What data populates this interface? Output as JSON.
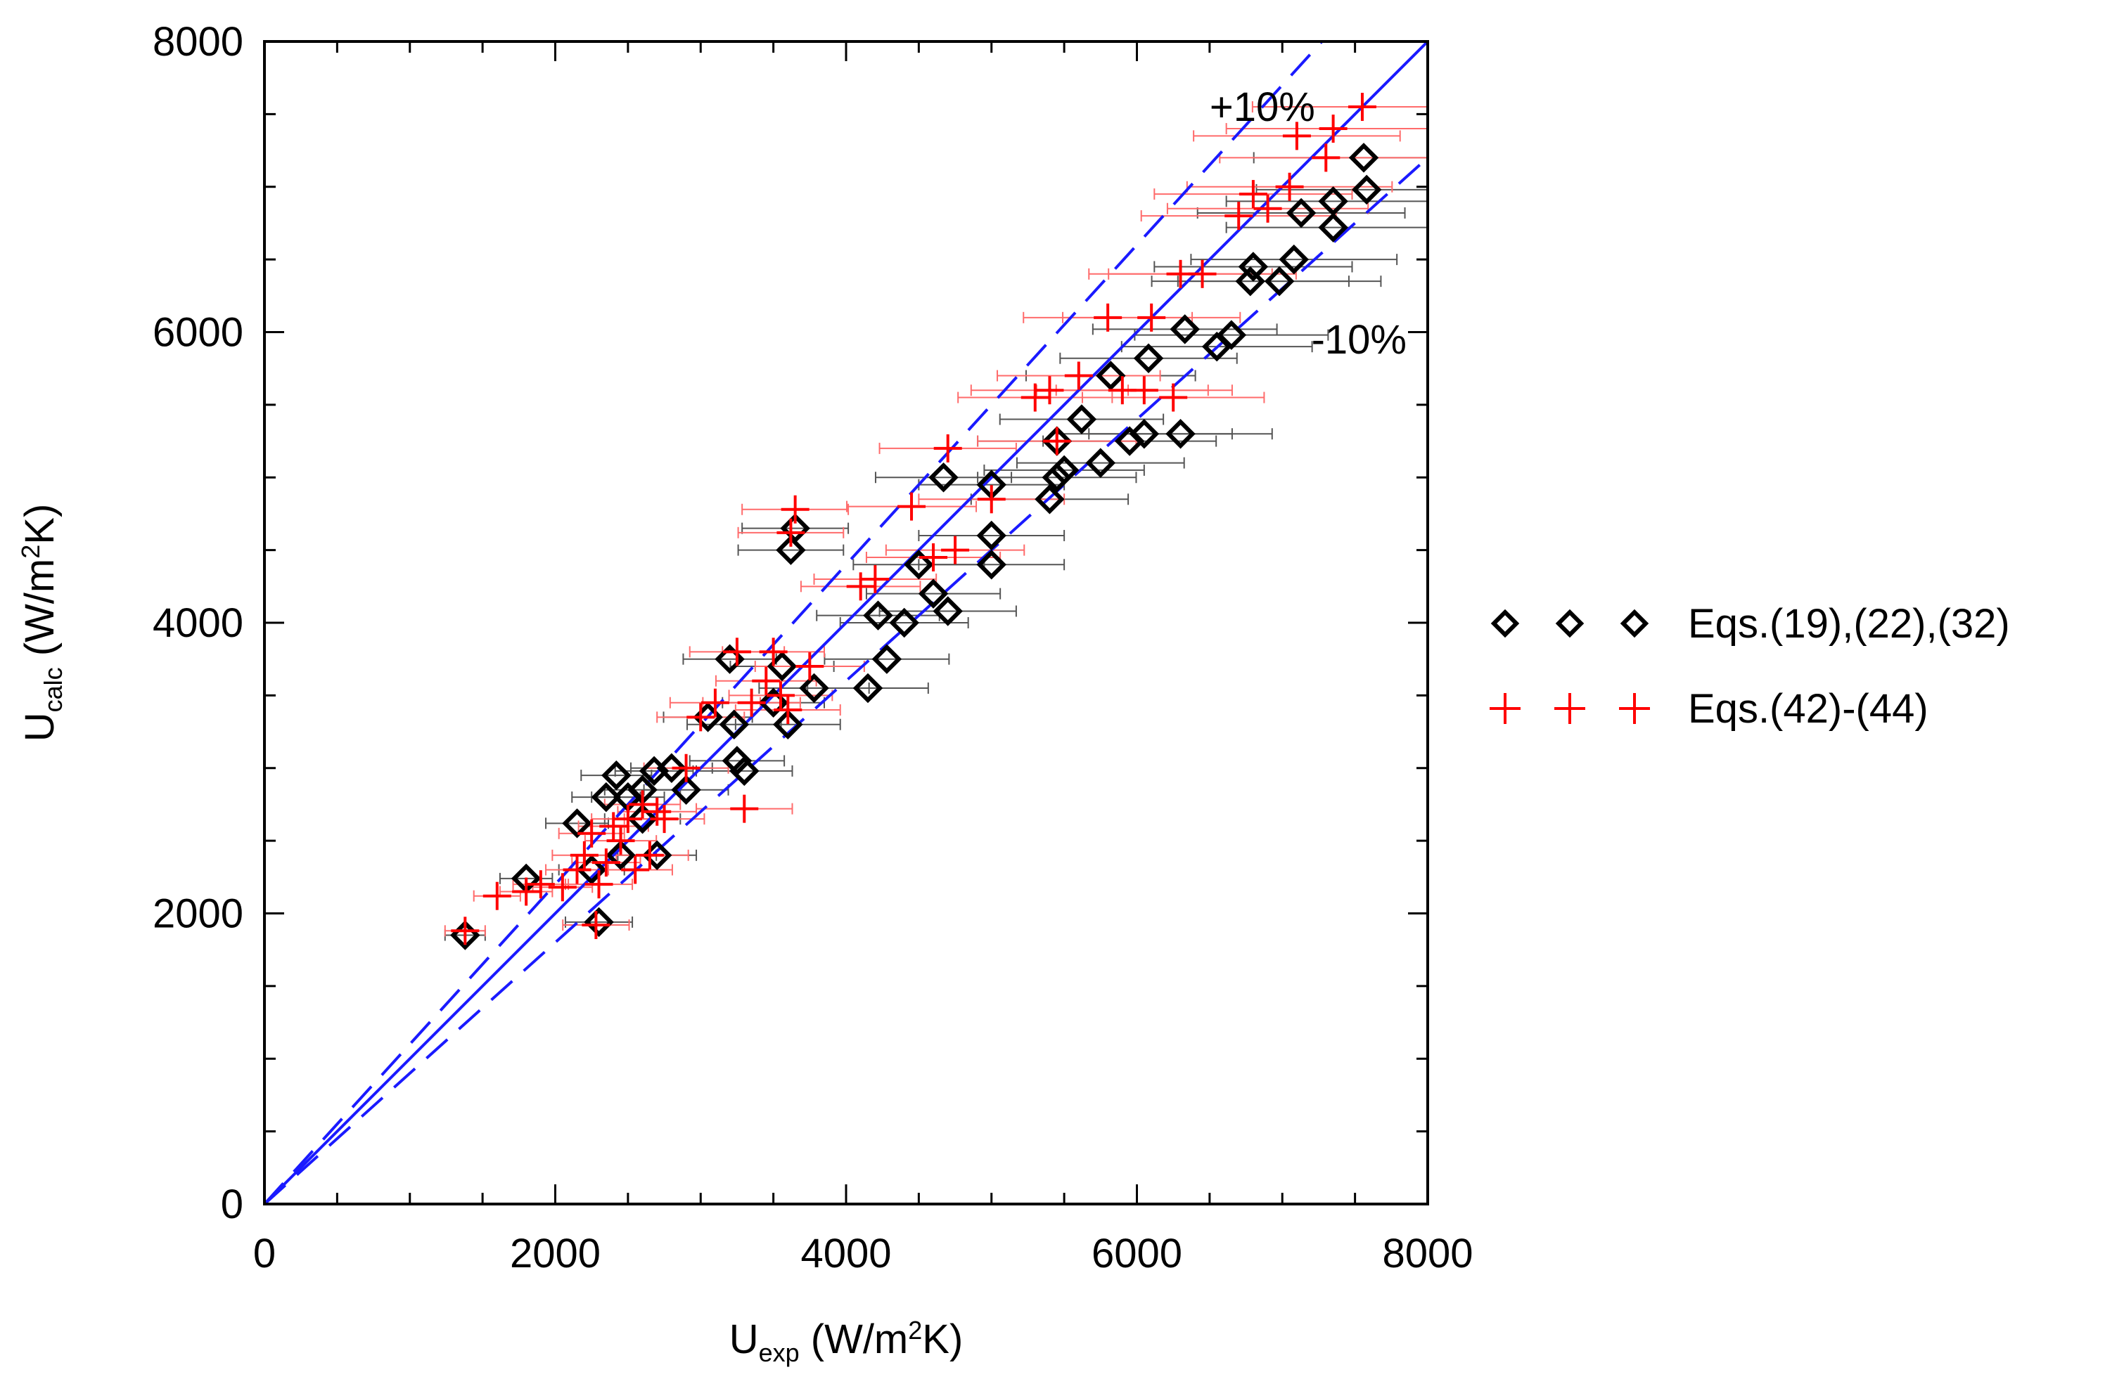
{
  "chart_data": {
    "type": "scatter",
    "title": "",
    "xlabel": {
      "main": "U",
      "sub": "exp",
      "pre_sup": " (W/m",
      "sup": "2",
      "post_sup": "K)"
    },
    "ylabel": {
      "main": "U",
      "sub": "calc",
      "pre_sup": " (W/m",
      "sup": "2",
      "post_sup": "K)"
    },
    "xlim": [
      0,
      8000
    ],
    "ylim": [
      0,
      8000
    ],
    "xticks": [
      0,
      2000,
      4000,
      6000,
      8000
    ],
    "yticks": [
      0,
      2000,
      4000,
      6000,
      8000
    ],
    "xtick_labels": [
      "0",
      "2000",
      "4000",
      "6000",
      "8000"
    ],
    "ytick_labels": [
      "0",
      "2000",
      "4000",
      "6000",
      "8000"
    ],
    "minor_step": 500,
    "grid": false,
    "legend_position": "right",
    "reference_lines": [
      {
        "name": "parity line",
        "slope": 1.0,
        "style": "solid",
        "color": "#1a1aff"
      },
      {
        "name": "+10% line",
        "slope": 1.1,
        "style": "dashed",
        "color": "#1a1aff"
      },
      {
        "name": "-10% line",
        "slope": 0.9,
        "style": "dashed",
        "color": "#1a1aff"
      }
    ],
    "annotations": [
      {
        "text": "+10%",
        "x": 6500,
        "y": 7550
      },
      {
        "text": "-10%",
        "x": 7200,
        "y": 5950
      }
    ],
    "error_bar_fraction": 0.1,
    "series": [
      {
        "name": "Eqs.(19),(22),(32)",
        "marker": "diamond",
        "color": "#000000",
        "errorbar_color": "#555555",
        "points": [
          [
            1380,
            1850
          ],
          [
            1800,
            2240
          ],
          [
            2150,
            2620
          ],
          [
            2300,
            1940
          ],
          [
            2250,
            2300
          ],
          [
            2350,
            2800
          ],
          [
            2420,
            2950
          ],
          [
            2500,
            2800
          ],
          [
            2600,
            2850
          ],
          [
            2680,
            2980
          ],
          [
            2800,
            3000
          ],
          [
            2900,
            2850
          ],
          [
            3050,
            3350
          ],
          [
            3200,
            3750
          ],
          [
            3230,
            3300
          ],
          [
            3300,
            2980
          ],
          [
            3250,
            3050
          ],
          [
            3500,
            3450
          ],
          [
            3560,
            3700
          ],
          [
            3600,
            3300
          ],
          [
            3620,
            4500
          ],
          [
            3650,
            4650
          ],
          [
            3780,
            3550
          ],
          [
            4150,
            3550
          ],
          [
            4220,
            4050
          ],
          [
            4280,
            3750
          ],
          [
            4400,
            4000
          ],
          [
            4500,
            4400
          ],
          [
            4600,
            4200
          ],
          [
            4700,
            4080
          ],
          [
            4670,
            5000
          ],
          [
            5000,
            4400
          ],
          [
            5000,
            4600
          ],
          [
            5000,
            4950
          ],
          [
            5400,
            4850
          ],
          [
            5450,
            5000
          ],
          [
            5500,
            5050
          ],
          [
            5450,
            5250
          ],
          [
            5620,
            5400
          ],
          [
            5750,
            5100
          ],
          [
            5820,
            5700
          ],
          [
            5950,
            5250
          ],
          [
            6050,
            5300
          ],
          [
            6080,
            5820
          ],
          [
            6300,
            5300
          ],
          [
            6330,
            6020
          ],
          [
            6550,
            5900
          ],
          [
            6650,
            5980
          ],
          [
            6780,
            6350
          ],
          [
            6800,
            6450
          ],
          [
            6980,
            6350
          ],
          [
            7080,
            6500
          ],
          [
            7130,
            6820
          ],
          [
            7350,
            6720
          ],
          [
            7350,
            6900
          ],
          [
            7580,
            6980
          ],
          [
            7560,
            7200
          ],
          [
            2450,
            2400
          ],
          [
            2600,
            2650
          ],
          [
            2700,
            2400
          ]
        ]
      },
      {
        "name": "Eqs.(42)-(44)",
        "marker": "plus",
        "color": "#ff0000",
        "errorbar_color": "#ff6b6b",
        "points": [
          [
            1380,
            1880
          ],
          [
            1600,
            2120
          ],
          [
            1800,
            2150
          ],
          [
            1900,
            2200
          ],
          [
            2050,
            2180
          ],
          [
            2150,
            2300
          ],
          [
            2200,
            2400
          ],
          [
            2250,
            2550
          ],
          [
            2280,
            1920
          ],
          [
            2300,
            2200
          ],
          [
            2350,
            2350
          ],
          [
            2400,
            2600
          ],
          [
            2450,
            2500
          ],
          [
            2500,
            2650
          ],
          [
            2550,
            2300
          ],
          [
            2600,
            2750
          ],
          [
            2650,
            2400
          ],
          [
            2700,
            2700
          ],
          [
            2750,
            2650
          ],
          [
            2900,
            3000
          ],
          [
            3000,
            3350
          ],
          [
            3100,
            3450
          ],
          [
            3250,
            3800
          ],
          [
            3300,
            2720
          ],
          [
            3350,
            3450
          ],
          [
            3450,
            3600
          ],
          [
            3500,
            3800
          ],
          [
            3550,
            3500
          ],
          [
            3600,
            3400
          ],
          [
            3650,
            4780
          ],
          [
            3620,
            4620
          ],
          [
            3750,
            3700
          ],
          [
            4100,
            4250
          ],
          [
            4200,
            4300
          ],
          [
            4450,
            4800
          ],
          [
            4600,
            4450
          ],
          [
            4700,
            5200
          ],
          [
            4750,
            4500
          ],
          [
            5000,
            4850
          ],
          [
            5300,
            5550
          ],
          [
            5400,
            5600
          ],
          [
            5450,
            5250
          ],
          [
            5600,
            5700
          ],
          [
            5800,
            6100
          ],
          [
            5900,
            5600
          ],
          [
            6050,
            5600
          ],
          [
            6100,
            6100
          ],
          [
            6250,
            5550
          ],
          [
            6300,
            6400
          ],
          [
            6450,
            6400
          ],
          [
            6700,
            6800
          ],
          [
            6800,
            6950
          ],
          [
            6900,
            6850
          ],
          [
            7050,
            7000
          ],
          [
            7100,
            7350
          ],
          [
            7300,
            7200
          ],
          [
            7350,
            7400
          ],
          [
            7550,
            7550
          ]
        ]
      }
    ]
  }
}
